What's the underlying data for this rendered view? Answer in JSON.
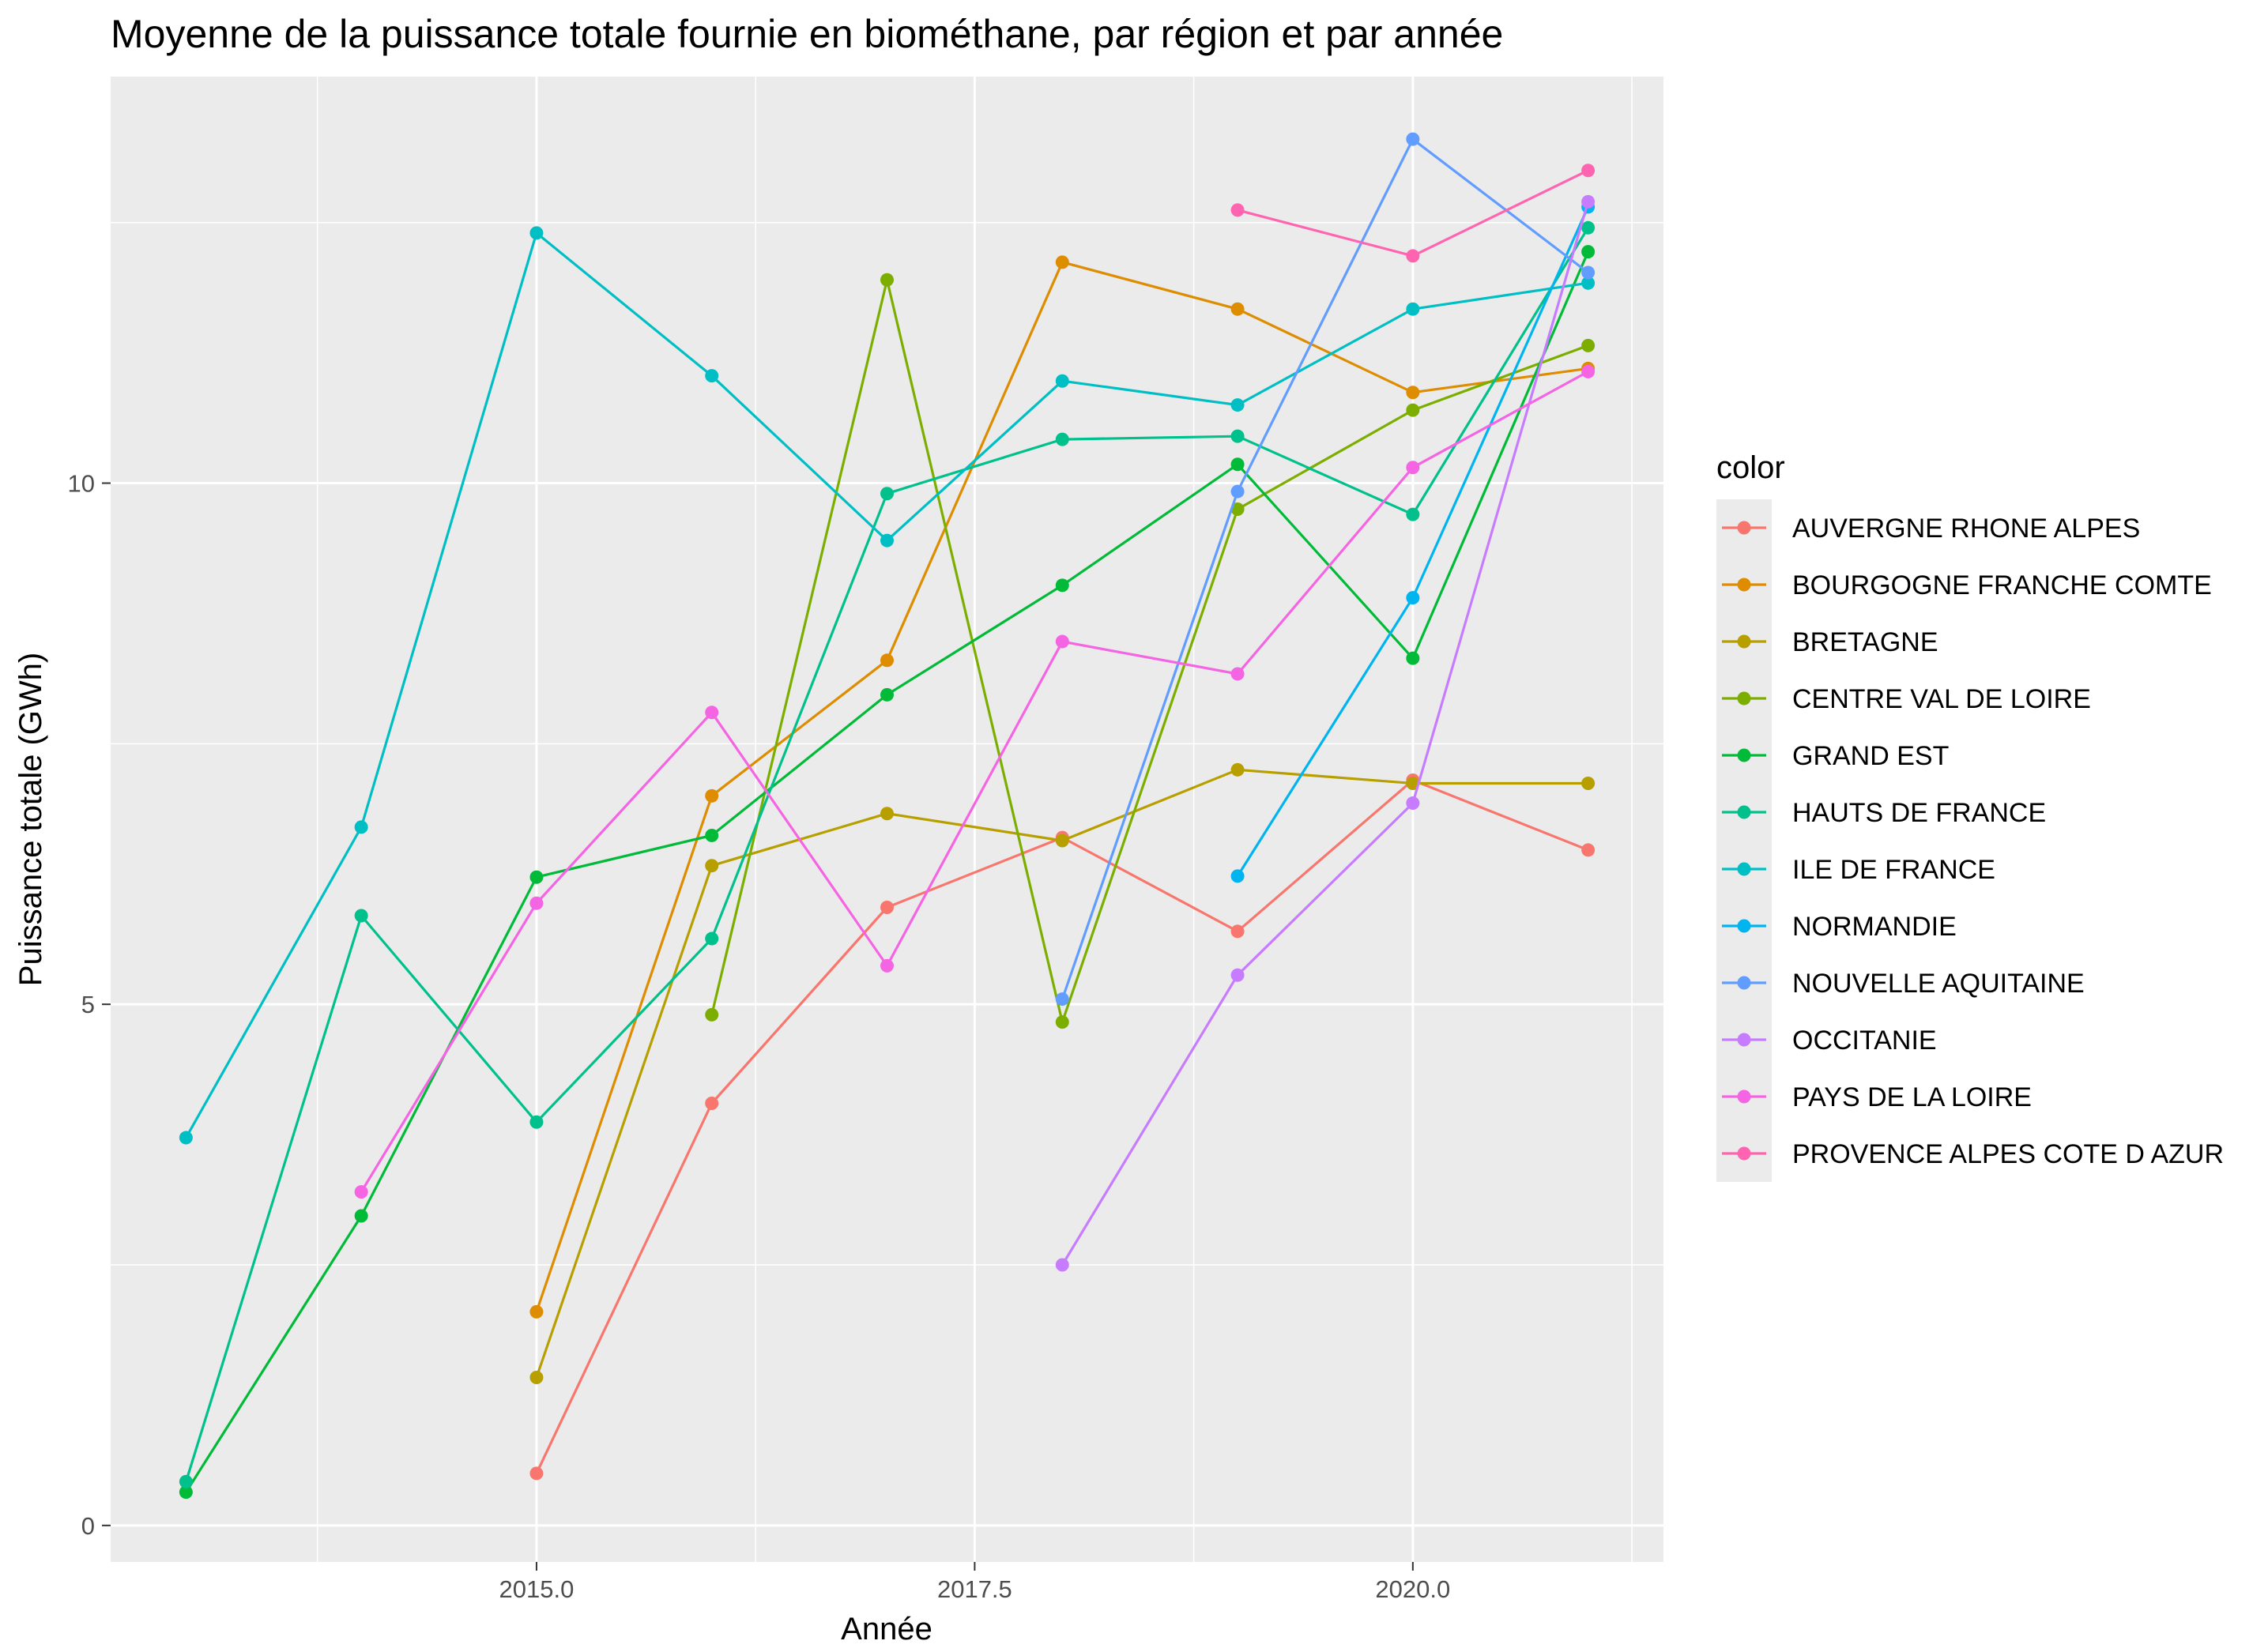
{
  "chart_data": {
    "type": "line",
    "title": "Moyenne de la puissance totale fournie en biométhane, par région et par année",
    "xlabel": "Année",
    "ylabel": "Puissance totale (GWh)",
    "xlim": [
      2012.57,
      2021.43
    ],
    "ylim": [
      -0.35,
      13.9
    ],
    "x_ticks": [
      2015,
      2017.5,
      2020
    ],
    "x_tick_labels": [
      "2015.0",
      "2017.5",
      "2020.0"
    ],
    "y_ticks": [
      0,
      5,
      10
    ],
    "y_tick_labels": [
      "0",
      "5",
      "10"
    ],
    "grid": true,
    "legend_title": "color",
    "legend_position": "right",
    "series": [
      {
        "name": "AUVERGNE RHONE ALPES",
        "color": "#F8766D",
        "x": [
          2015,
          2016,
          2017,
          2018,
          2019,
          2020,
          2021
        ],
        "y": [
          0.5,
          4.05,
          5.93,
          6.6,
          5.7,
          7.15,
          6.48
        ]
      },
      {
        "name": "BOURGOGNE FRANCHE COMTE",
        "color": "#DE8C00",
        "x": [
          2015,
          2016,
          2017,
          2018,
          2019,
          2020,
          2021
        ],
        "y": [
          2.05,
          7.0,
          8.3,
          12.12,
          11.67,
          10.87,
          11.1
        ]
      },
      {
        "name": "BRETAGNE",
        "color": "#B79F00",
        "x": [
          2015,
          2016,
          2017,
          2018,
          2019,
          2020,
          2021
        ],
        "y": [
          1.42,
          6.33,
          6.83,
          6.57,
          7.25,
          7.12,
          7.12
        ]
      },
      {
        "name": "CENTRE VAL DE LOIRE",
        "color": "#7CAE00",
        "x": [
          2016,
          2017,
          2018,
          2019,
          2020,
          2021
        ],
        "y": [
          4.9,
          11.95,
          4.83,
          9.75,
          10.7,
          11.32
        ]
      },
      {
        "name": "GRAND EST",
        "color": "#00BA38",
        "x": [
          2013,
          2014,
          2015,
          2016,
          2017,
          2018,
          2019,
          2020,
          2021
        ],
        "y": [
          0.32,
          2.97,
          6.22,
          6.62,
          7.97,
          9.02,
          10.18,
          8.32,
          12.22
        ]
      },
      {
        "name": "HAUTS DE FRANCE",
        "color": "#00C08B",
        "x": [
          2013,
          2014,
          2015,
          2016,
          2017,
          2018,
          2019,
          2020,
          2021
        ],
        "y": [
          0.42,
          5.85,
          3.87,
          5.63,
          9.9,
          10.42,
          10.45,
          9.7,
          12.45
        ]
      },
      {
        "name": "ILE DE FRANCE",
        "color": "#00BFC4",
        "x": [
          2013,
          2014,
          2015,
          2016,
          2017,
          2018,
          2019,
          2020,
          2021
        ],
        "y": [
          3.72,
          6.7,
          12.4,
          11.03,
          9.45,
          10.98,
          10.75,
          11.67,
          11.92
        ]
      },
      {
        "name": "NORMANDIE",
        "color": "#00B4F0",
        "x": [
          2019,
          2020,
          2021
        ],
        "y": [
          6.23,
          8.9,
          12.65
        ]
      },
      {
        "name": "NOUVELLE AQUITAINE",
        "color": "#619CFF",
        "x": [
          2018,
          2019,
          2020,
          2021
        ],
        "y": [
          5.05,
          9.92,
          13.3,
          12.02
        ]
      },
      {
        "name": "OCCITANIE",
        "color": "#C77CFF",
        "x": [
          2018,
          2019,
          2020,
          2021
        ],
        "y": [
          2.5,
          5.28,
          6.93,
          12.7
        ]
      },
      {
        "name": "PAYS DE LA LOIRE",
        "color": "#F564E3",
        "x": [
          2014,
          2015,
          2016,
          2017,
          2018,
          2019,
          2020,
          2021
        ],
        "y": [
          3.2,
          5.97,
          7.8,
          5.37,
          8.48,
          8.17,
          10.15,
          11.07
        ]
      },
      {
        "name": "PROVENCE ALPES COTE D AZUR",
        "color": "#FF64B0",
        "x": [
          2019,
          2020,
          2021
        ],
        "y": [
          12.62,
          12.18,
          13.0
        ]
      }
    ]
  }
}
